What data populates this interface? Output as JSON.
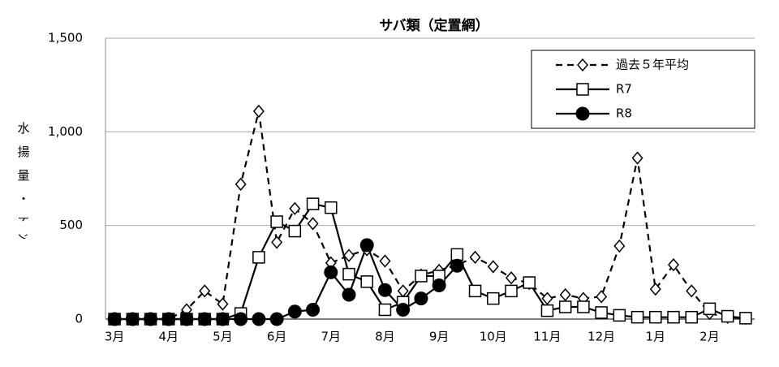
{
  "chart_data": {
    "type": "line",
    "title": "サバ類（定置網）",
    "y_label": "水揚量・ﾄﾝ",
    "categories": [
      "3月",
      null,
      null,
      "4月",
      null,
      null,
      "5月",
      null,
      null,
      "6月",
      null,
      null,
      "7月",
      null,
      null,
      "8月",
      null,
      null,
      "9月",
      null,
      null,
      "10月",
      null,
      null,
      "11月",
      null,
      null,
      "12月",
      null,
      null,
      "1月",
      null,
      null,
      "2月",
      null,
      null
    ],
    "series": [
      {
        "name": "過去５年平均",
        "color": "#000000",
        "dash": true,
        "marker": "diamond",
        "values": [
          0,
          0,
          0,
          0,
          50,
          150,
          80,
          720,
          1110,
          410,
          590,
          510,
          300,
          340,
          370,
          310,
          150,
          235,
          260,
          290,
          330,
          280,
          220,
          190,
          110,
          130,
          110,
          120,
          390,
          860,
          160,
          290,
          150,
          30,
          10,
          5
        ]
      },
      {
        "name": "R7",
        "color": "#000000",
        "dash": false,
        "marker": "square",
        "values": [
          0,
          0,
          0,
          0,
          0,
          0,
          0,
          30,
          330,
          520,
          470,
          615,
          595,
          240,
          200,
          50,
          90,
          230,
          230,
          345,
          150,
          110,
          150,
          195,
          45,
          65,
          65,
          35,
          20,
          10,
          10,
          10,
          10,
          55,
          15,
          5
        ]
      },
      {
        "name": "R8",
        "color": "#000000",
        "dash": false,
        "marker": "circle",
        "values": [
          0,
          0,
          0,
          0,
          0,
          0,
          0,
          0,
          0,
          0,
          40,
          50,
          250,
          130,
          395,
          155,
          50,
          110,
          180,
          285,
          null,
          null,
          null,
          null,
          null,
          null,
          null,
          null,
          null,
          null,
          null,
          null,
          null,
          null,
          null,
          null
        ]
      }
    ],
    "ylim": [
      0,
      1500
    ],
    "yticks": [
      0,
      500,
      {
        "value": 1000,
        "label": "1,000"
      },
      {
        "value": 1500,
        "label": "1,500"
      }
    ],
    "grid": true,
    "legend": "top-right"
  }
}
